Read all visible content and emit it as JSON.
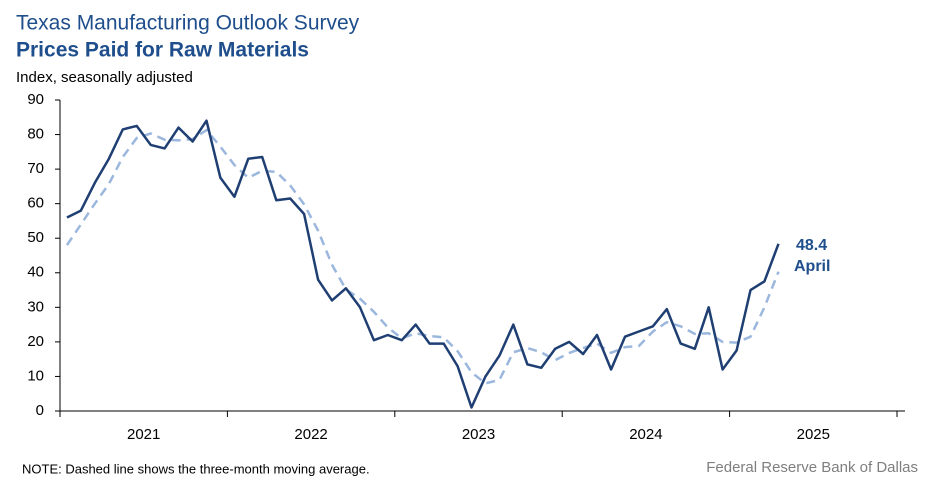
{
  "chart_data": {
    "type": "line",
    "title": "Texas Manufacturing Outlook Survey",
    "subtitle": "Prices Paid for Raw Materials",
    "y_label": "Index, seasonally adjusted",
    "note": "NOTE: Dashed line shows the three-month moving average.",
    "source": "Federal Reserve Bank of Dallas",
    "annotations": [
      "48.4",
      "April"
    ],
    "x": [
      2021.042,
      2021.125,
      2021.208,
      2021.292,
      2021.375,
      2021.458,
      2021.542,
      2021.625,
      2021.708,
      2021.792,
      2021.875,
      2021.958,
      2022.042,
      2022.125,
      2022.208,
      2022.292,
      2022.375,
      2022.458,
      2022.542,
      2022.625,
      2022.708,
      2022.792,
      2022.875,
      2022.958,
      2023.042,
      2023.125,
      2023.208,
      2023.292,
      2023.375,
      2023.458,
      2023.542,
      2023.625,
      2023.708,
      2023.792,
      2023.875,
      2023.958,
      2024.042,
      2024.125,
      2024.208,
      2024.292,
      2024.375,
      2024.458,
      2024.542,
      2024.625,
      2024.708,
      2024.792,
      2024.875,
      2024.958,
      2025.042,
      2025.125,
      2025.208,
      2025.292
    ],
    "series": [
      {
        "color": "#1f3f73",
        "dashed": false,
        "values": [
          56,
          58,
          66,
          73,
          81.5,
          82.5,
          77,
          76,
          82,
          78,
          84,
          67.5,
          62,
          73,
          73.5,
          61,
          61.5,
          57,
          38,
          32,
          35.5,
          30,
          20.5,
          22,
          20.5,
          25,
          19.5,
          19.5,
          13,
          1,
          10,
          16,
          25,
          13.5,
          12.5,
          18,
          20,
          16.5,
          22,
          12,
          21.5,
          23,
          24.5,
          29.5,
          19.5,
          18,
          30,
          12,
          17.5,
          35,
          37.5,
          48.4
        ]
      },
      {
        "color": "#9bb7dd",
        "dashed": true,
        "values": [
          48,
          54,
          60,
          65.7,
          73.5,
          79,
          80.3,
          78.5,
          78.3,
          78.7,
          81.3,
          76.5,
          71.2,
          67.5,
          69.5,
          69.2,
          65.3,
          59.8,
          52.2,
          42.3,
          35.2,
          32.5,
          28.7,
          24.2,
          21,
          22.5,
          21.7,
          21.3,
          17.3,
          11.2,
          8,
          9,
          17,
          18.2,
          17,
          14.7,
          16.8,
          18.2,
          19.5,
          16.8,
          18.5,
          18.8,
          23,
          25.7,
          24.5,
          22.3,
          22.5,
          20,
          19.8,
          21.5,
          30,
          40.3
        ]
      }
    ],
    "xlim": [
      2021,
      2026
    ],
    "xticks": [
      2021,
      2022,
      2023,
      2024,
      2025,
      2026
    ],
    "year_labels": [
      2021,
      2022,
      2023,
      2024,
      2025
    ],
    "ylim": [
      0,
      90
    ],
    "yticks": [
      0,
      10,
      20,
      30,
      40,
      50,
      60,
      70,
      80,
      90
    ],
    "grid": false
  }
}
